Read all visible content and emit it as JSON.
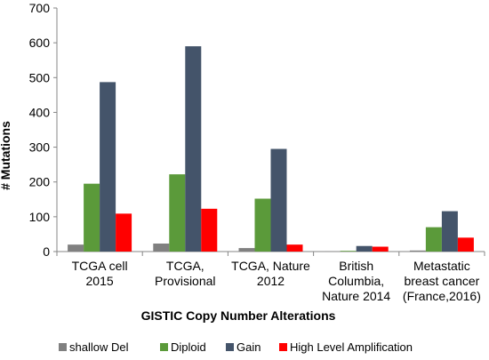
{
  "chart_data": {
    "type": "bar",
    "title": "",
    "xlabel": "GISTIC Copy Number Alterations",
    "ylabel": "# Mutations",
    "ylim": [
      0,
      700
    ],
    "yticks": [
      0,
      100,
      200,
      300,
      400,
      500,
      600,
      700
    ],
    "grid": false,
    "legend_position": "bottom",
    "categories": [
      [
        "TCGA cell",
        "2015"
      ],
      [
        "TCGA,",
        "Provisional"
      ],
      [
        "TCGA, Nature",
        "2012"
      ],
      [
        "British",
        "Columbia,",
        "Nature 2014"
      ],
      [
        "Metastatic",
        "breast cancer",
        "(France,2016)"
      ]
    ],
    "series": [
      {
        "name": "shallow Del",
        "color": "#808080",
        "values": [
          20,
          23,
          10,
          1,
          3
        ]
      },
      {
        "name": "Diploid",
        "color": "#5b9a3a",
        "values": [
          195,
          222,
          152,
          2,
          70
        ]
      },
      {
        "name": "Gain",
        "color": "#44546a",
        "values": [
          487,
          590,
          295,
          16,
          116
        ]
      },
      {
        "name": "High Level Amplification",
        "color": "#ff0000",
        "values": [
          109,
          123,
          20,
          14,
          40
        ]
      }
    ]
  }
}
